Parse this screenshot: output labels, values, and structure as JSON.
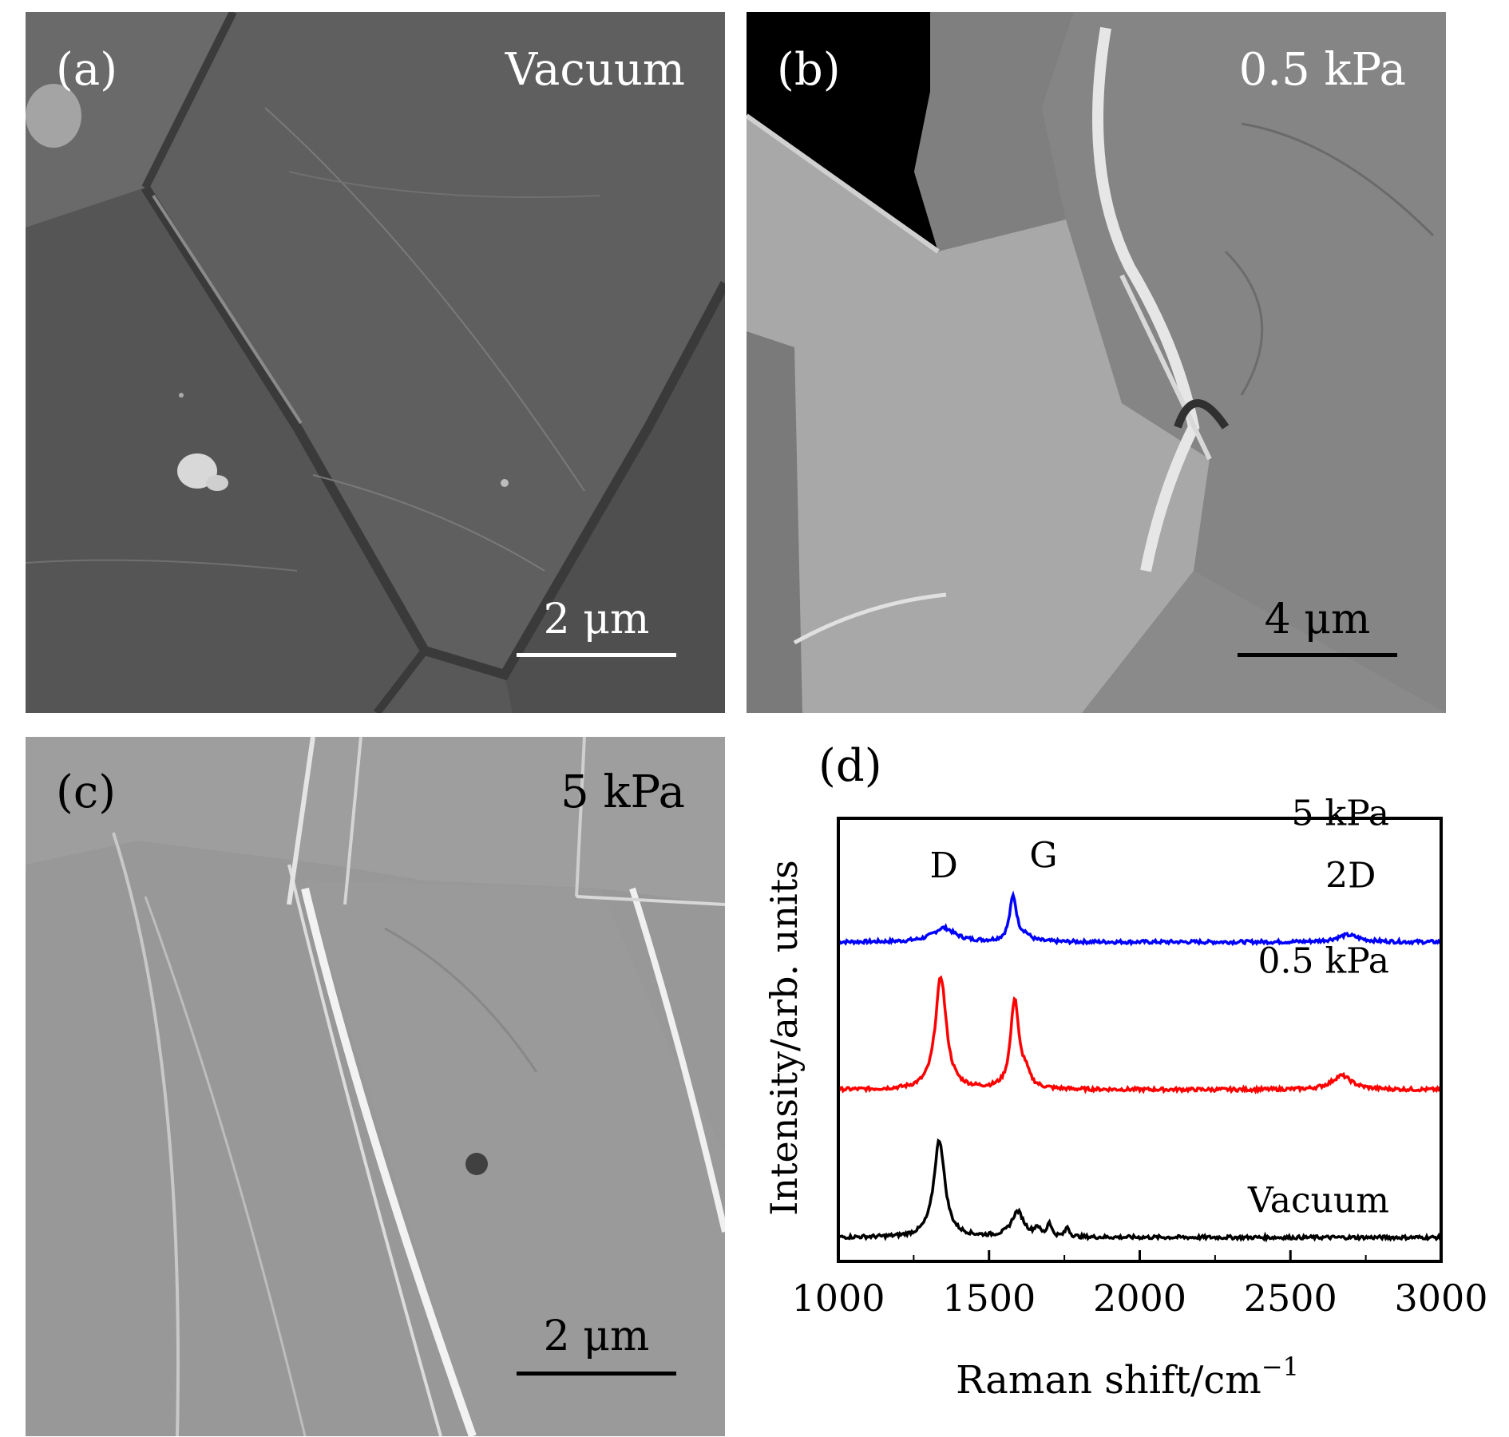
{
  "panels": {
    "a": {
      "label": "(a)",
      "condition": "Vacuum",
      "scale": "2 μm"
    },
    "b": {
      "label": "(b)",
      "condition": "0.5 kPa",
      "scale": "4 μm"
    },
    "c": {
      "label": "(c)",
      "condition": "5 kPa",
      "scale": "2 μm"
    },
    "d": {
      "label": "(d)"
    }
  },
  "chart_data": {
    "type": "line",
    "xlabel": "Raman shift/cm",
    "xlabel_sup": "−1",
    "ylabel": "Intensity/arb. units",
    "xlim": [
      1000,
      3000
    ],
    "xticks": [
      1000,
      1500,
      2000,
      2500,
      3000
    ],
    "xtick_labels": [
      "1000",
      "1500",
      "2000",
      "2500",
      "3000"
    ],
    "peak_labels": [
      {
        "text": "D",
        "x": 1350
      },
      {
        "text": "G",
        "x": 1580
      },
      {
        "text": "2D",
        "x": 2700
      }
    ],
    "series": [
      {
        "name": "5 kPa",
        "color": "#0000ff",
        "offset": 2.1,
        "baseline": 0.02,
        "peaks": [
          {
            "center": 1350,
            "height": 0.1,
            "width": 45
          },
          {
            "center": 1580,
            "height": 0.32,
            "width": 14
          },
          {
            "center": 1620,
            "height": 0.04,
            "width": 20
          },
          {
            "center": 2690,
            "height": 0.05,
            "width": 45
          }
        ]
      },
      {
        "name": "0.5 kPa",
        "color": "#ff0000",
        "offset": 1.05,
        "baseline": 0.02,
        "peaks": [
          {
            "center": 1340,
            "height": 0.8,
            "width": 22
          },
          {
            "center": 1585,
            "height": 0.63,
            "width": 16
          },
          {
            "center": 1620,
            "height": 0.1,
            "width": 18
          },
          {
            "center": 2670,
            "height": 0.1,
            "width": 40
          }
        ]
      },
      {
        "name": "Vacuum",
        "color": "#000000",
        "offset": 0.0,
        "baseline": 0.02,
        "peaks": [
          {
            "center": 1335,
            "height": 0.69,
            "width": 22
          },
          {
            "center": 1595,
            "height": 0.18,
            "width": 25
          },
          {
            "center": 1660,
            "height": 0.06,
            "width": 10
          },
          {
            "center": 1700,
            "height": 0.1,
            "width": 8
          },
          {
            "center": 1760,
            "height": 0.07,
            "width": 8
          }
        ]
      }
    ]
  },
  "colors": {
    "sem_a": "#595959",
    "sem_b": "#8c8c8c",
    "sem_c": "#999999"
  }
}
